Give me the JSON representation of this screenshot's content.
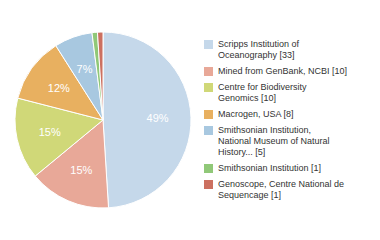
{
  "chart_data": {
    "type": "pie",
    "categories": [
      "Scripps Institution of\nOceanography [33]",
      "Mined from GenBank, NCBI [10]",
      "Centre for Biodiversity\nGenomics [10]",
      "Macrogen, USA [8]",
      "Smithsonian Institution,\nNational Museum of Natural\nHistory... [5]",
      "Smithsonian Institution [1]",
      "Genoscope, Centre National de\nSequencage [1]"
    ],
    "values": [
      49,
      15,
      15,
      12,
      7,
      1,
      1
    ],
    "value_labels": [
      "49%",
      "15%",
      "15%",
      "12%",
      "7%",
      null,
      null
    ],
    "colors": [
      "#c5d8ea",
      "#e8a898",
      "#d0d878",
      "#e8b060",
      "#a8c8e0",
      "#90c878",
      "#cc7060"
    ],
    "data_labels": true,
    "legend": "right"
  }
}
